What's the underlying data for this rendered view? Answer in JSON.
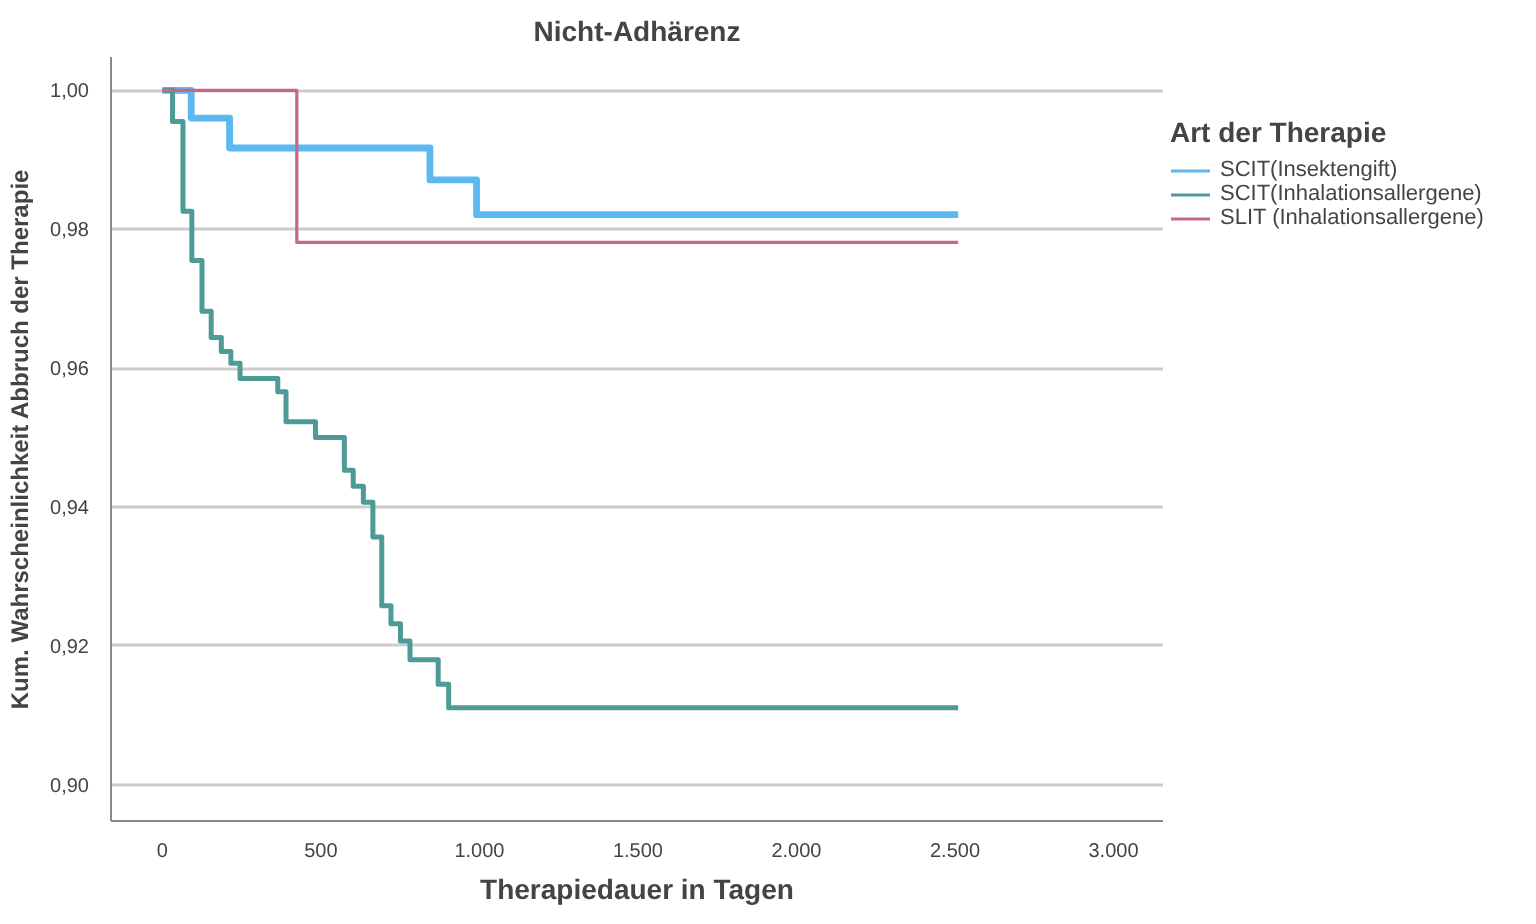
{
  "chart_data": {
    "type": "step",
    "title": "Nicht-Adhärenz",
    "xlabel": "Therapiedauer in Tagen",
    "ylabel": "Kum. Wahrscheinlichkeit Abbruch der Therapie",
    "legend_title": "Art der Therapie",
    "series": [
      {
        "name": "SCIT(Insektengift)",
        "color": "#5cb8f0",
        "x": [
          0,
          91,
          212,
          844,
          991,
          2510
        ],
        "values": [
          1.0,
          0.996,
          0.9917,
          0.9871,
          0.9821,
          0.9821
        ]
      },
      {
        "name": "SCIT(Inhalationsallergene)",
        "color": "#4e9a96",
        "x": [
          0,
          32,
          65,
          93,
          125,
          154,
          186,
          216,
          245,
          364,
          390,
          483,
          574,
          602,
          634,
          664,
          692,
          721,
          751,
          781,
          870,
          903,
          2510
        ],
        "values": [
          1.0,
          0.9955,
          0.9826,
          0.9755,
          0.9682,
          0.9644,
          0.9624,
          0.9607,
          0.9585,
          0.9566,
          0.9523,
          0.95,
          0.9453,
          0.943,
          0.9407,
          0.9357,
          0.9258,
          0.9232,
          0.9207,
          0.918,
          0.9145,
          0.9111,
          0.9111
        ]
      },
      {
        "name": "SLIT (Inhalationsallergene)",
        "color": "#c8668a",
        "x": [
          0,
          424,
          2510
        ],
        "values": [
          1.0,
          0.9781,
          0.9781
        ]
      }
    ],
    "xlim": [
      -162,
      3156
    ],
    "ylim": [
      0.8948,
      1.0048
    ],
    "xticks": [
      {
        "value": 0,
        "label": "0"
      },
      {
        "value": 500,
        "label": "500"
      },
      {
        "value": 1000,
        "label": "1.000"
      },
      {
        "value": 1500,
        "label": "1.500"
      },
      {
        "value": 2000,
        "label": "2.000"
      },
      {
        "value": 2500,
        "label": "2.500"
      },
      {
        "value": 3000,
        "label": "3.000"
      }
    ],
    "yticks": [
      {
        "value": 0.9,
        "label": "0,90"
      },
      {
        "value": 0.92,
        "label": "0,92"
      },
      {
        "value": 0.94,
        "label": "0,94"
      },
      {
        "value": 0.96,
        "label": "0,96"
      },
      {
        "value": 0.98,
        "label": "0,98"
      },
      {
        "value": 1.0,
        "label": "1,00"
      }
    ],
    "grid": "y",
    "legend": "right",
    "line_style": "solid",
    "marker": "none"
  }
}
